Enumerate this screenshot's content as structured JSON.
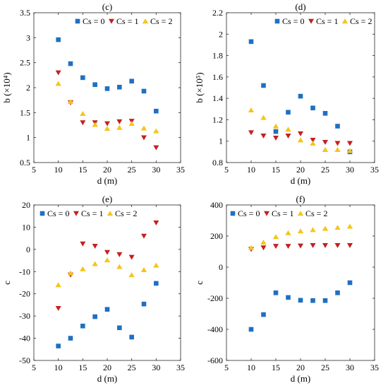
{
  "colors": {
    "cs0": "#1f6fc2",
    "cs1": "#c42020",
    "cs2": "#f5c518"
  },
  "chart_data": [
    {
      "type": "scatter",
      "title": "(c)",
      "xlabel": "d (m)",
      "ylabel": "b (×10⁴)",
      "xlim": [
        5,
        35
      ],
      "ylim": [
        0.5,
        3.5
      ],
      "xticks": [
        5,
        10,
        15,
        20,
        25,
        30,
        35
      ],
      "yticks": [
        0.5,
        1,
        1.5,
        2,
        2.5,
        3,
        3.5
      ],
      "xtick_labels": [
        "5",
        "10",
        "15",
        "20",
        "25",
        "30",
        "35"
      ],
      "ytick_labels": [
        "0.5",
        "1",
        "1.5",
        "2",
        "2.5",
        "3",
        "3.5"
      ],
      "legend_position": "top-right",
      "series": [
        {
          "name": "Cs = 0",
          "marker": "square",
          "x": [
            10,
            12.5,
            15,
            17.5,
            20,
            22.5,
            25,
            27.5,
            30
          ],
          "y": [
            2.96,
            2.48,
            2.2,
            2.06,
            1.98,
            2.01,
            2.13,
            1.93,
            1.53
          ]
        },
        {
          "name": "Cs = 1",
          "marker": "triangle-down",
          "x": [
            10,
            12.5,
            15,
            17.5,
            20,
            22.5,
            25,
            27.5,
            30
          ],
          "y": [
            2.3,
            1.7,
            1.3,
            1.3,
            1.28,
            1.32,
            1.33,
            1.0,
            0.8
          ]
        },
        {
          "name": "Cs = 2",
          "marker": "triangle-up",
          "x": [
            10,
            12.5,
            15,
            17.5,
            20,
            22.5,
            25,
            27.5,
            30
          ],
          "y": [
            2.08,
            1.72,
            1.48,
            1.26,
            1.18,
            1.2,
            1.28,
            1.19,
            1.13
          ]
        }
      ]
    },
    {
      "type": "scatter",
      "title": "(d)",
      "xlabel": "d (m)",
      "ylabel": "b (×10⁵)",
      "xlim": [
        5,
        35
      ],
      "ylim": [
        0.8,
        2.2
      ],
      "xticks": [
        5,
        10,
        15,
        20,
        25,
        30,
        35
      ],
      "yticks": [
        0.8,
        1.0,
        1.2,
        1.4,
        1.6,
        1.8,
        2.0,
        2.2
      ],
      "xtick_labels": [
        "5",
        "10",
        "15",
        "20",
        "25",
        "30",
        "35"
      ],
      "ytick_labels": [
        "0.8",
        "1",
        "1.2",
        "1.4",
        "1.6",
        "1.8",
        "2",
        "2.2"
      ],
      "legend_position": "top-right",
      "series": [
        {
          "name": "Cs = 0",
          "marker": "square",
          "x": [
            10,
            12.5,
            15,
            17.5,
            20,
            22.5,
            25,
            27.5,
            30
          ],
          "y": [
            1.93,
            1.52,
            1.09,
            1.27,
            1.42,
            1.31,
            1.26,
            1.14,
            0.9
          ]
        },
        {
          "name": "Cs = 1",
          "marker": "triangle-down",
          "x": [
            10,
            12.5,
            15,
            17.5,
            20,
            22.5,
            25,
            27.5,
            30
          ],
          "y": [
            1.08,
            1.05,
            1.03,
            1.05,
            1.07,
            1.01,
            0.99,
            0.98,
            0.98
          ]
        },
        {
          "name": "Cs = 2",
          "marker": "triangle-up",
          "x": [
            10,
            12.5,
            15,
            17.5,
            20,
            22.5,
            25,
            27.5,
            30
          ],
          "y": [
            1.29,
            1.22,
            1.14,
            1.11,
            1.01,
            0.98,
            0.92,
            0.92,
            0.91
          ]
        }
      ]
    },
    {
      "type": "scatter",
      "title": "(e)",
      "xlabel": "d (m)",
      "ylabel": "c",
      "xlim": [
        5,
        35
      ],
      "ylim": [
        -50,
        20
      ],
      "xticks": [
        5,
        10,
        15,
        20,
        25,
        30,
        35
      ],
      "yticks": [
        -50,
        -40,
        -30,
        -20,
        -10,
        0,
        10,
        20
      ],
      "xtick_labels": [
        "5",
        "10",
        "15",
        "20",
        "25",
        "30",
        "35"
      ],
      "ytick_labels": [
        "-50",
        "-40",
        "-30",
        "-20",
        "-10",
        "0",
        "10",
        "20"
      ],
      "legend_position": "top",
      "series": [
        {
          "name": "Cs = 0",
          "marker": "square",
          "x": [
            10,
            12.5,
            15,
            17.5,
            20,
            22.5,
            25,
            27.5,
            30
          ],
          "y": [
            -43.5,
            -40,
            -34.5,
            -30.3,
            -27,
            -35.3,
            -39.5,
            -24.6,
            -15.3
          ]
        },
        {
          "name": "Cs = 1",
          "marker": "triangle-down",
          "x": [
            10,
            12.5,
            15,
            17.5,
            20,
            22.5,
            25,
            27.5,
            30
          ],
          "y": [
            -26.5,
            -11.5,
            2.5,
            1.5,
            -1.3,
            -2.3,
            -3.5,
            6,
            12
          ]
        },
        {
          "name": "Cs = 2",
          "marker": "triangle-up",
          "x": [
            10,
            12.5,
            15,
            17.5,
            20,
            22.5,
            25,
            27.5,
            30
          ],
          "y": [
            -16,
            -10.7,
            -8.8,
            -6.5,
            -4.8,
            -7.8,
            -11.5,
            -9.2,
            -7.2
          ]
        }
      ]
    },
    {
      "type": "scatter",
      "title": "(f)",
      "xlabel": "d (m)",
      "ylabel": "c",
      "xlim": [
        5,
        35
      ],
      "ylim": [
        -600,
        400
      ],
      "xticks": [
        5,
        10,
        15,
        20,
        25,
        30,
        35
      ],
      "yticks": [
        -600,
        -400,
        -200,
        0,
        200,
        400
      ],
      "xtick_labels": [
        "5",
        "10",
        "15",
        "20",
        "25",
        "30",
        "35"
      ],
      "ytick_labels": [
        "-600",
        "-400",
        "-200",
        "0",
        "200",
        "400"
      ],
      "legend_position": "top",
      "series": [
        {
          "name": "Cs = 0",
          "marker": "square",
          "x": [
            10,
            12.5,
            15,
            17.5,
            20,
            22.5,
            25,
            27.5,
            30
          ],
          "y": [
            -400,
            -305,
            -165,
            -195,
            -213,
            -215,
            -215,
            -165,
            -100
          ]
        },
        {
          "name": "Cs = 1",
          "marker": "triangle-down",
          "x": [
            10,
            12.5,
            15,
            17.5,
            20,
            22.5,
            25,
            27.5,
            30
          ],
          "y": [
            115,
            125,
            135,
            135,
            137,
            140,
            140,
            140,
            140
          ]
        },
        {
          "name": "Cs = 2",
          "marker": "triangle-up",
          "x": [
            10,
            12.5,
            15,
            17.5,
            20,
            22.5,
            25,
            27.5,
            30
          ],
          "y": [
            125,
            160,
            195,
            220,
            232,
            240,
            248,
            255,
            262
          ]
        }
      ]
    }
  ]
}
